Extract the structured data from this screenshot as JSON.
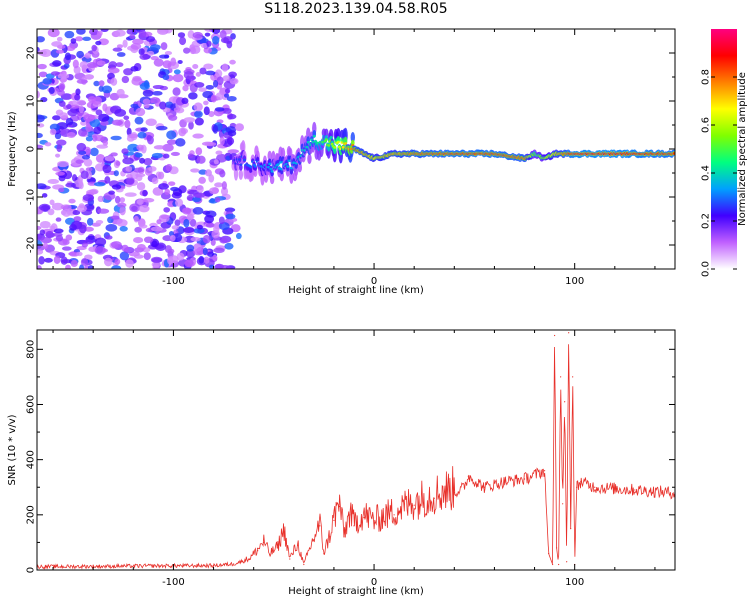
{
  "title": "S118.2023.139.04.58.R05",
  "chart_data": [
    {
      "type": "heatmap",
      "xlabel": "Height of straight line (km)",
      "ylabel": "Frequency (Hz)",
      "xlim": [
        -168,
        150
      ],
      "ylim": [
        -25,
        25
      ],
      "xticks": [
        -100,
        0,
        100
      ],
      "yticks": [
        -20,
        -10,
        0,
        10,
        20
      ],
      "colorbar": {
        "label": "Normalized spectral amplitude",
        "range": [
          0.0,
          1.0
        ],
        "ticks": [
          0.0,
          0.2,
          0.4,
          0.6,
          0.8
        ],
        "colormap": [
          "#ffffff",
          "#c060ff",
          "#4000ff",
          "#00a0ff",
          "#00ff80",
          "#80ff00",
          "#ffff00",
          "#ff8000",
          "#ff0000",
          "#ff0080"
        ]
      },
      "noise_region": {
        "x": [
          -168,
          -70
        ],
        "y": [
          -25,
          25
        ]
      },
      "ridge": {
        "x": [
          -70,
          -60,
          -50,
          -40,
          -30,
          -20,
          -10,
          0,
          10,
          20,
          40,
          60,
          75,
          80,
          85,
          90,
          100,
          120,
          150
        ],
        "freq": [
          -2,
          -3,
          -4,
          -3,
          2,
          1,
          0,
          -2,
          -1,
          -1,
          -1,
          -1,
          -2,
          -1,
          -2,
          -1,
          -1,
          -1,
          -1
        ],
        "amplitude": [
          0.25,
          0.3,
          0.35,
          0.35,
          0.4,
          0.6,
          0.8,
          0.7,
          0.75,
          0.8,
          0.85,
          0.85,
          0.8,
          0.5,
          0.6,
          0.7,
          0.9,
          0.9,
          0.85
        ]
      }
    },
    {
      "type": "line",
      "xlabel": "Height of straight line (km)",
      "ylabel": "SNR (10 * v/v)",
      "xlim": [
        -168,
        150
      ],
      "ylim": [
        0,
        870
      ],
      "xticks": [
        -100,
        0,
        100
      ],
      "yticks": [
        0,
        200,
        400,
        600,
        800
      ],
      "color": "#e8302a",
      "series": [
        {
          "x": [
            -168,
            -140,
            -110,
            -80,
            -70,
            -62,
            -58,
            -55,
            -52,
            -48,
            -45,
            -42,
            -38,
            -35,
            -30,
            -27,
            -25,
            -22,
            -20,
            -17,
            -15,
            -12,
            -10,
            -5,
            0,
            10,
            20,
            30,
            40,
            45,
            47,
            55,
            65,
            75,
            85,
            87,
            89,
            90,
            91,
            92,
            93,
            94,
            95,
            96,
            97,
            98,
            99,
            100,
            101,
            103,
            110,
            130,
            150
          ],
          "y": [
            12,
            13,
            15,
            16,
            22,
            40,
            70,
            100,
            55,
            80,
            140,
            40,
            90,
            20,
            110,
            160,
            60,
            120,
            180,
            230,
            120,
            200,
            160,
            190,
            170,
            200,
            235,
            260,
            280,
            300,
            340,
            300,
            320,
            330,
            360,
            60,
            20,
            850,
            80,
            20,
            700,
            240,
            610,
            30,
            860,
            150,
            700,
            20,
            300,
            320,
            300,
            290,
            280
          ]
        }
      ]
    }
  ]
}
